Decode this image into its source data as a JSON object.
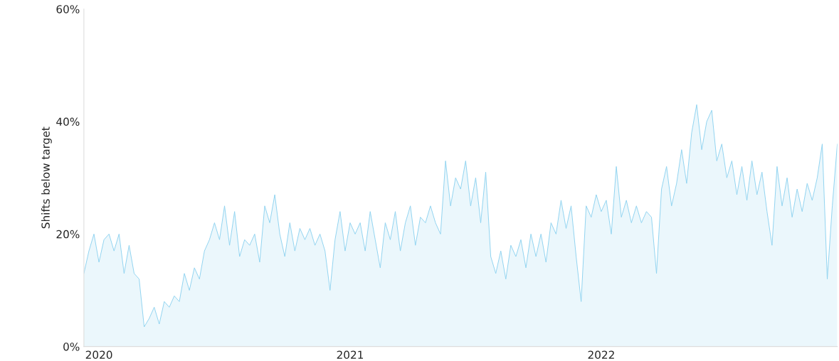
{
  "chart_data": {
    "type": "area",
    "ylabel": "Shifts below target",
    "x": [
      2019.94,
      2019.96,
      2019.98,
      2020.0,
      2020.02,
      2020.04,
      2020.06,
      2020.08,
      2020.1,
      2020.12,
      2020.14,
      2020.16,
      2020.18,
      2020.2,
      2020.22,
      2020.24,
      2020.26,
      2020.28,
      2020.3,
      2020.32,
      2020.34,
      2020.36,
      2020.38,
      2020.4,
      2020.42,
      2020.44,
      2020.46,
      2020.48,
      2020.5,
      2020.52,
      2020.54,
      2020.56,
      2020.58,
      2020.6,
      2020.62,
      2020.64,
      2020.66,
      2020.68,
      2020.7,
      2020.72,
      2020.74,
      2020.76,
      2020.78,
      2020.8,
      2020.82,
      2020.84,
      2020.86,
      2020.88,
      2020.9,
      2020.92,
      2020.94,
      2020.96,
      2020.98,
      2021.0,
      2021.02,
      2021.04,
      2021.06,
      2021.08,
      2021.1,
      2021.12,
      2021.14,
      2021.16,
      2021.18,
      2021.2,
      2021.22,
      2021.24,
      2021.26,
      2021.28,
      2021.3,
      2021.32,
      2021.34,
      2021.36,
      2021.38,
      2021.4,
      2021.42,
      2021.44,
      2021.46,
      2021.48,
      2021.5,
      2021.52,
      2021.54,
      2021.56,
      2021.58,
      2021.6,
      2021.62,
      2021.64,
      2021.66,
      2021.68,
      2021.7,
      2021.72,
      2021.74,
      2021.76,
      2021.78,
      2021.8,
      2021.82,
      2021.84,
      2021.86,
      2021.88,
      2021.9,
      2021.92,
      2021.94,
      2021.96,
      2021.98,
      2022.0,
      2022.02,
      2022.04,
      2022.06,
      2022.08,
      2022.1,
      2022.12,
      2022.14,
      2022.16,
      2022.18,
      2022.2,
      2022.22,
      2022.24,
      2022.26,
      2022.28,
      2022.3,
      2022.32,
      2022.34,
      2022.36,
      2022.38,
      2022.4,
      2022.42,
      2022.44,
      2022.46,
      2022.48,
      2022.5,
      2022.52,
      2022.54,
      2022.56,
      2022.58,
      2022.6,
      2022.62,
      2022.64,
      2022.66,
      2022.68,
      2022.7,
      2022.72,
      2022.74,
      2022.76,
      2022.78,
      2022.8,
      2022.82,
      2022.84,
      2022.86,
      2022.88,
      2022.9,
      2022.92,
      2022.94
    ],
    "series": [
      {
        "color": "#8fd3f0",
        "values": [
          13,
          17,
          20,
          15,
          19,
          20,
          17,
          20,
          13,
          18,
          13,
          12,
          3.5,
          5,
          7,
          4,
          8,
          7,
          9,
          8,
          13,
          10,
          14,
          12,
          17,
          19,
          22,
          19,
          25,
          18,
          24,
          16,
          19,
          18,
          20,
          15,
          25,
          22,
          27,
          20,
          16,
          22,
          17,
          21,
          19,
          21,
          18,
          20,
          17,
          10,
          19,
          24,
          17,
          22,
          20,
          22,
          17,
          24,
          19,
          14,
          22,
          19,
          24,
          17,
          22,
          25,
          18,
          23,
          22,
          25,
          22,
          20,
          33,
          25,
          30,
          28,
          33,
          25,
          30,
          22,
          31,
          16,
          13,
          17,
          12,
          18,
          16,
          19,
          14,
          20,
          16,
          20,
          15,
          22,
          20,
          26,
          21,
          25,
          16,
          8,
          25,
          23,
          27,
          24,
          26,
          20,
          32,
          23,
          26,
          22,
          25,
          22,
          24,
          23,
          13,
          28,
          32,
          25,
          29,
          35,
          29,
          38,
          43,
          35,
          40,
          42,
          33,
          36,
          30,
          33,
          27,
          32,
          26,
          33,
          27,
          31,
          24,
          18,
          32,
          25,
          30,
          23,
          28,
          24,
          29,
          26,
          30,
          36,
          12,
          25,
          36
        ]
      }
    ],
    "xlim": [
      2019.94,
      2022.94
    ],
    "xticks": [
      2020,
      2021,
      2022
    ],
    "ylim": [
      0,
      60
    ],
    "yticks": [
      {
        "value": 0,
        "label": "0%"
      },
      {
        "value": 20,
        "label": "20%"
      },
      {
        "value": 40,
        "label": "40%"
      },
      {
        "value": 60,
        "label": "60%"
      }
    ]
  }
}
